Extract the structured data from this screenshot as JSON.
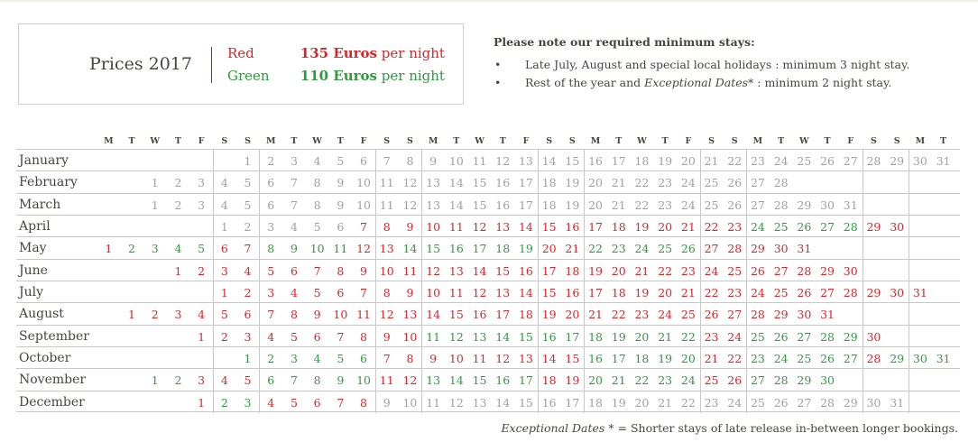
{
  "legend": {
    "title": "Prices 2017",
    "rows": [
      {
        "color_name": "Red",
        "price": "135 Euros",
        "suffix": "per night",
        "color": "#d8262b"
      },
      {
        "color_name": "Green",
        "price": "110 Euros",
        "suffix": "per night",
        "color": "#2f9a3e"
      }
    ]
  },
  "notes": {
    "title": "Please note our required minimum stays:",
    "bullet": "•",
    "items": [
      {
        "pre": "Late July, August and special local holidays : minimum 3 night stay.",
        "em": "",
        "post": ""
      },
      {
        "pre": "Rest of the year and ",
        "em": "Exceptional Dates",
        "post": "* : minimum 2 night stay."
      }
    ]
  },
  "weekday_letters": [
    "M",
    "T",
    "W",
    "T",
    "F",
    "S",
    "S"
  ],
  "colors": {
    "red": "#d8262b",
    "green": "#2f9a3e",
    "gray": "#a0a0a0"
  },
  "months": [
    {
      "name": "January",
      "offset": 6,
      "days": 31,
      "ranges": [
        [
          1,
          31,
          "g"
        ]
      ]
    },
    {
      "name": "February",
      "offset": 2,
      "days": 28,
      "ranges": [
        [
          1,
          28,
          "g"
        ]
      ]
    },
    {
      "name": "March",
      "offset": 2,
      "days": 31,
      "ranges": [
        [
          1,
          31,
          "g"
        ]
      ]
    },
    {
      "name": "April",
      "offset": 5,
      "days": 30,
      "ranges": [
        [
          1,
          6,
          "g"
        ],
        [
          7,
          23,
          "r"
        ],
        [
          24,
          28,
          "G"
        ],
        [
          29,
          30,
          "r"
        ]
      ]
    },
    {
      "name": "May",
      "offset": 0,
      "days": 31,
      "ranges": [
        [
          1,
          1,
          "r"
        ],
        [
          2,
          5,
          "G"
        ],
        [
          6,
          7,
          "r"
        ],
        [
          8,
          11,
          "G"
        ],
        [
          12,
          13,
          "r"
        ],
        [
          14,
          19,
          "G"
        ],
        [
          20,
          21,
          "r"
        ],
        [
          22,
          26,
          "G"
        ],
        [
          27,
          31,
          "r"
        ]
      ]
    },
    {
      "name": "June",
      "offset": 3,
      "days": 30,
      "ranges": [
        [
          1,
          30,
          "r"
        ]
      ]
    },
    {
      "name": "July",
      "offset": 5,
      "days": 31,
      "ranges": [
        [
          1,
          31,
          "r"
        ]
      ]
    },
    {
      "name": "August",
      "offset": 1,
      "days": 31,
      "ranges": [
        [
          1,
          31,
          "r"
        ]
      ]
    },
    {
      "name": "September",
      "offset": 4,
      "days": 30,
      "ranges": [
        [
          1,
          10,
          "r"
        ],
        [
          11,
          22,
          "G"
        ],
        [
          23,
          24,
          "r"
        ],
        [
          25,
          29,
          "G"
        ],
        [
          30,
          30,
          "r"
        ]
      ]
    },
    {
      "name": "October",
      "offset": 6,
      "days": 31,
      "ranges": [
        [
          1,
          6,
          "G"
        ],
        [
          7,
          15,
          "r"
        ],
        [
          16,
          20,
          "G"
        ],
        [
          21,
          22,
          "r"
        ],
        [
          23,
          27,
          "G"
        ],
        [
          28,
          28,
          "r"
        ],
        [
          29,
          31,
          "G"
        ]
      ]
    },
    {
      "name": "November",
      "offset": 2,
      "days": 30,
      "ranges": [
        [
          1,
          2,
          "G"
        ],
        [
          3,
          5,
          "r"
        ],
        [
          6,
          10,
          "G"
        ],
        [
          11,
          12,
          "r"
        ],
        [
          13,
          17,
          "G"
        ],
        [
          18,
          19,
          "r"
        ],
        [
          20,
          24,
          "G"
        ],
        [
          25,
          26,
          "r"
        ],
        [
          27,
          30,
          "G"
        ]
      ]
    },
    {
      "name": "December",
      "offset": 4,
      "days": 31,
      "ranges": [
        [
          1,
          1,
          "r"
        ],
        [
          2,
          3,
          "G"
        ],
        [
          4,
          8,
          "r"
        ],
        [
          9,
          31,
          "g"
        ]
      ]
    }
  ],
  "footnote": {
    "em": "Exceptional Dates",
    "post": "*  =  Shorter stays of late release in-between longer bookings."
  }
}
